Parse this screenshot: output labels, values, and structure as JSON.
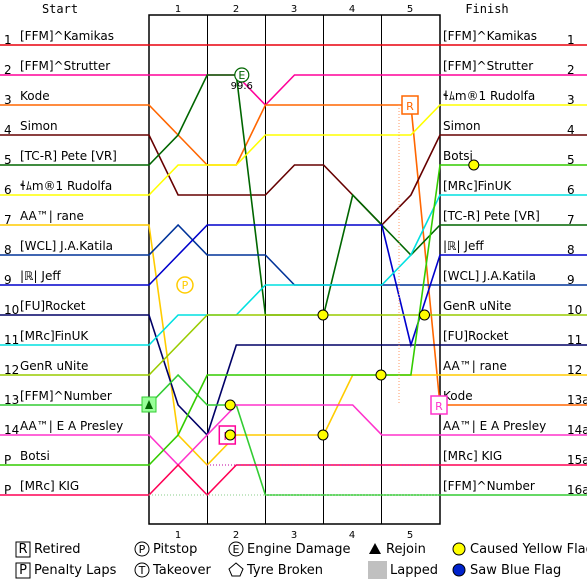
{
  "chart_data": {
    "type": "line",
    "title": "",
    "header_start": "Start",
    "header_finish": "Finish",
    "laps": [
      "1",
      "2",
      "3",
      "4",
      "5"
    ],
    "start_positions": [
      "1",
      "2",
      "3",
      "4",
      "5",
      "6",
      "7",
      "8",
      "9",
      "10",
      "11",
      "12",
      "13",
      "14",
      "P",
      "P"
    ],
    "finish_positions": [
      "1",
      "2",
      "3",
      "4",
      "5",
      "6",
      "7",
      "8",
      "9",
      "10",
      "11",
      "12",
      "13a",
      "14a",
      "15a",
      "16a"
    ],
    "start_order": [
      "[FFM]^Kamikas",
      "[FFM]^Strutter",
      "Kode",
      "Simon",
      "[TC-R] Pete [VR]",
      "ɬﾑm®1 Rudolfa",
      "AA™| rane",
      "[WCL] J.A.Katila",
      "|ℝ| Jeff",
      "[FU]Rocket",
      "[MRc]FinUK",
      "GenR uNite",
      "[FFM]^Number",
      "AA™| E A Presley",
      "Botsi",
      "[MRc] KIG"
    ],
    "finish_order": [
      "[FFM]^Kamikas",
      "[FFM]^Strutter",
      "ɬﾑm®1 Rudolfa",
      "Simon",
      "Botsi",
      "[MRc]FinUK",
      "[TC-R] Pete [VR]",
      "|ℝ| Jeff",
      "[WCL] J.A.Katila",
      "GenR uNite",
      "[FU]Rocket",
      "AA™| rane",
      "Kode",
      "AA™| E A Presley",
      "[MRc] KIG",
      "[FFM]^Number"
    ],
    "series": [
      {
        "name": "[FFM]^Kamikas",
        "color": "#e8000e",
        "positions": [
          1,
          1,
          1,
          1,
          1,
          1,
          1,
          1,
          1,
          1,
          1,
          1,
          1
        ]
      },
      {
        "name": "[FFM]^Strutter",
        "color": "#ff0099",
        "positions": [
          2,
          2,
          2,
          2,
          2,
          3,
          2,
          2,
          2,
          2,
          2,
          2,
          2
        ]
      },
      {
        "name": "Kode",
        "color": "#ff6600",
        "positions": [
          3,
          3,
          4,
          5,
          5,
          3,
          3,
          3,
          3,
          3,
          3,
          13,
          13
        ]
      },
      {
        "name": "Simon",
        "color": "#660000",
        "positions": [
          4,
          4,
          6,
          6,
          6,
          6,
          5,
          5,
          6,
          7,
          6,
          4,
          4
        ]
      },
      {
        "name": "[TC-R] Pete [VR]",
        "color": "#006600",
        "positions": [
          5,
          5,
          4,
          2,
          2,
          10,
          10,
          10,
          6,
          7,
          8,
          7,
          7
        ]
      },
      {
        "name": "ɬﾑm®1 Rudolfa",
        "color": "#ffff00",
        "positions": [
          6,
          6,
          5,
          5,
          5,
          4,
          4,
          4,
          4,
          4,
          4,
          3,
          3
        ]
      },
      {
        "name": "AA™| rane",
        "color": "#ffcc00",
        "positions": [
          7,
          7,
          14,
          15,
          14,
          14,
          14,
          14,
          12,
          12,
          12,
          12,
          12
        ]
      },
      {
        "name": "[WCL] J.A.Katila",
        "color": "#003399",
        "positions": [
          8,
          8,
          7,
          8,
          8,
          8,
          9,
          9,
          9,
          9,
          9,
          9,
          9
        ]
      },
      {
        "name": "|ℝ| Jeff",
        "color": "#0000cc",
        "positions": [
          9,
          9,
          8,
          7,
          7,
          7,
          7,
          7,
          7,
          7,
          11,
          8,
          8
        ]
      },
      {
        "name": "[FU]Rocket",
        "color": "#000066",
        "positions": [
          10,
          10,
          13,
          14,
          11,
          11,
          11,
          11,
          11,
          11,
          11,
          11,
          11
        ]
      },
      {
        "name": "[MRc]FinUK",
        "color": "#00e0e0",
        "positions": [
          11,
          11,
          10,
          10,
          10,
          9,
          9,
          9,
          9,
          9,
          8,
          6,
          6
        ]
      },
      {
        "name": "GenR uNite",
        "color": "#99cc00",
        "positions": [
          12,
          12,
          11,
          10,
          10,
          10,
          10,
          10,
          10,
          10,
          10,
          10,
          10
        ]
      },
      {
        "name": "[FFM]^Number",
        "color": "#33cc33",
        "positions": [
          13,
          13,
          12,
          13,
          13,
          16,
          16,
          16,
          16,
          16,
          16,
          16,
          16
        ]
      },
      {
        "name": "AA™| E A Presley",
        "color": "#ff33cc",
        "positions": [
          14,
          14,
          15,
          14,
          13,
          13,
          13,
          13,
          13,
          14,
          14,
          14,
          14
        ]
      },
      {
        "name": "Botsi",
        "color": "#33cc00",
        "positions": [
          15,
          15,
          14,
          12,
          12,
          12,
          12,
          12,
          12,
          12,
          12,
          5,
          5
        ]
      },
      {
        "name": "[MRc] KIG",
        "color": "#ff0055",
        "positions": [
          16,
          16,
          15,
          16,
          15,
          15,
          15,
          15,
          15,
          15,
          15,
          15,
          15
        ]
      }
    ],
    "events": [
      {
        "type": "engine-damage",
        "symbol": "E",
        "lap": 1.6,
        "position": 2,
        "label": "99.6",
        "color": "#006600"
      },
      {
        "type": "retired",
        "symbol": "R",
        "lap": 4.5,
        "position": 3,
        "color": "#ff6600"
      },
      {
        "type": "pitstop",
        "symbol": "P",
        "lap": 0.62,
        "position": 9,
        "color": "#ffcc00"
      },
      {
        "type": "retired",
        "symbol": "R",
        "lap": 1.35,
        "position": 14,
        "color": "#ff0099"
      },
      {
        "type": "retired",
        "symbol": "R",
        "lap": 5.0,
        "position": 13,
        "color": "#ff33cc"
      },
      {
        "type": "rejoin",
        "symbol": "▲",
        "lap": 0.0,
        "position": 13,
        "color": "#33cc33"
      },
      {
        "type": "caused-yellow-flag",
        "lap": 3.0,
        "position": 10,
        "color": "#ffff00"
      },
      {
        "type": "caused-yellow-flag",
        "lap": 4.0,
        "position": 12,
        "color": "#ffff00"
      },
      {
        "type": "caused-yellow-flag",
        "lap": 4.75,
        "position": 10,
        "color": "#ffff00"
      },
      {
        "type": "caused-yellow-flag",
        "lap": 5.6,
        "position": 5,
        "color": "#ffff00"
      },
      {
        "type": "caused-yellow-flag",
        "lap": 1.4,
        "position": 13,
        "color": "#ffff00"
      },
      {
        "type": "caused-yellow-flag",
        "lap": 1.4,
        "position": 14,
        "color": "#ffff00"
      },
      {
        "type": "caused-yellow-flag",
        "lap": 3.0,
        "position": 14,
        "color": "#ffff00"
      }
    ],
    "legend": [
      {
        "symbol": "R",
        "label": "Retired"
      },
      {
        "symbol": "P",
        "label": "Pitstop"
      },
      {
        "symbol": "E",
        "label": "Engine Damage"
      },
      {
        "symbol": "▲",
        "label": "Rejoin"
      },
      {
        "symbol": "●",
        "label": "Caused Yellow Flag",
        "color": "#ffff00"
      },
      {
        "symbol": "P",
        "label": "Penalty Laps"
      },
      {
        "symbol": "T",
        "label": "Takeover"
      },
      {
        "symbol": "⬠",
        "label": "Tyre Broken"
      },
      {
        "symbol": "■",
        "label": "Lapped",
        "color": "#c0c0c0"
      },
      {
        "symbol": "●",
        "label": "Saw Blue Flag",
        "color": "#0022cc"
      }
    ]
  }
}
